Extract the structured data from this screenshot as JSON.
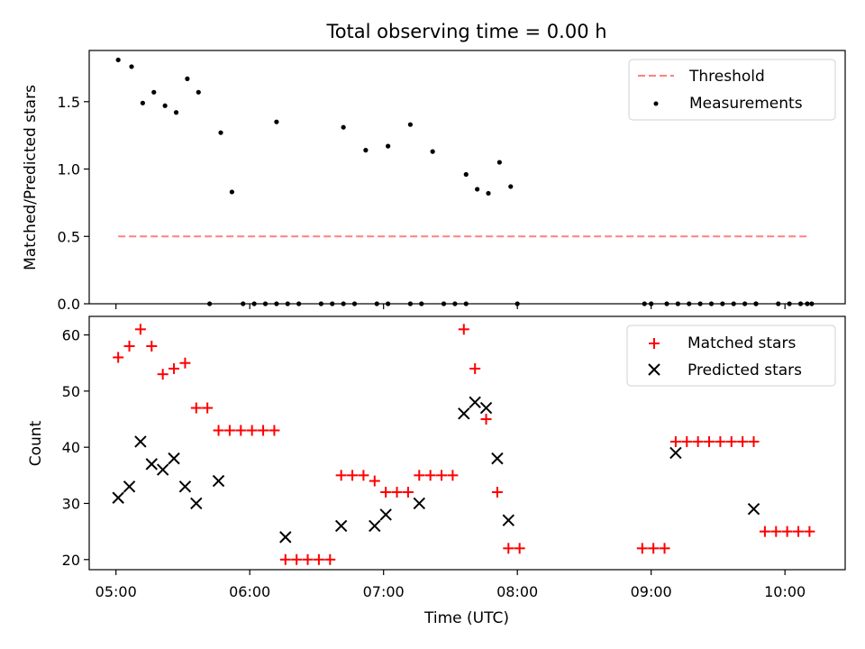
{
  "chart_data": [
    {
      "type": "scatter",
      "title": "Total observing time = 0.00 h",
      "ylabel": "Matched/Predicted stars",
      "xlim": [
        "04:48",
        "10:27"
      ],
      "ylim": [
        0,
        1.88
      ],
      "yticks": [
        0.0,
        0.5,
        1.0,
        1.5
      ],
      "yticklabels": [
        "0.0",
        "0.5",
        "1.0",
        "1.5"
      ],
      "legend_position": "top-right",
      "colors": {
        "threshold": "#ff8080",
        "measurements": "#000000"
      },
      "series": [
        {
          "name": "Threshold",
          "kind": "dashed-line",
          "x": [
            "05:01",
            "10:10"
          ],
          "values": [
            0.5,
            0.5
          ]
        },
        {
          "name": "Measurements",
          "kind": "dots",
          "x": [
            "05:01",
            "05:07",
            "05:12",
            "05:17",
            "05:22",
            "05:27",
            "05:32",
            "05:37",
            "05:47",
            "05:52",
            "06:12",
            "06:42",
            "06:52",
            "07:02",
            "07:12",
            "07:22",
            "07:37",
            "07:42",
            "07:47",
            "07:52",
            "07:57",
            "09:12",
            "09:47",
            "05:42",
            "05:57",
            "06:02",
            "06:07",
            "06:12",
            "06:17",
            "06:22",
            "06:32",
            "06:37",
            "06:42",
            "06:47",
            "06:57",
            "07:02",
            "07:12",
            "07:17",
            "07:27",
            "07:32",
            "07:37",
            "08:00",
            "08:57",
            "09:00",
            "09:07",
            "09:17",
            "09:22",
            "09:27",
            "09:32",
            "09:37",
            "09:42",
            "09:47",
            "09:57",
            "10:02",
            "10:07",
            "10:10",
            "10:12"
          ],
          "values": [
            1.81,
            1.76,
            1.49,
            1.57,
            1.47,
            1.42,
            1.67,
            1.57,
            1.27,
            0.83,
            1.35,
            1.31,
            1.14,
            1.17,
            1.33,
            1.13,
            0.96,
            0.85,
            0.82,
            1.05,
            0.87,
            0.0,
            0.0,
            0,
            0,
            0,
            0,
            0,
            0,
            0,
            0,
            0,
            0,
            0,
            0,
            0,
            0,
            0,
            0,
            0,
            0,
            0,
            0,
            0,
            0,
            0,
            0,
            0,
            0,
            0,
            0,
            0,
            0,
            0,
            0,
            0,
            0
          ]
        }
      ]
    },
    {
      "type": "scatter",
      "xlabel": "Time (UTC)",
      "ylabel": "Count",
      "xlim": [
        "04:48",
        "10:27"
      ],
      "xticks": [
        "05:00",
        "06:00",
        "07:00",
        "08:00",
        "09:00",
        "10:00"
      ],
      "ylim": [
        18.2,
        63.3
      ],
      "yticks": [
        20,
        30,
        40,
        50,
        60
      ],
      "legend_position": "top-right",
      "colors": {
        "matched": "#ff0000",
        "predicted": "#000000"
      },
      "series": [
        {
          "name": "Matched stars",
          "marker": "+",
          "x": [
            "05:01",
            "05:06",
            "05:11",
            "05:16",
            "05:21",
            "05:26",
            "05:31",
            "05:36",
            "05:41",
            "05:46",
            "05:51",
            "05:56",
            "06:01",
            "06:06",
            "06:11",
            "06:16",
            "06:21",
            "06:26",
            "06:31",
            "06:36",
            "06:41",
            "06:46",
            "06:51",
            "06:56",
            "07:01",
            "07:06",
            "07:11",
            "07:16",
            "07:21",
            "07:26",
            "07:31",
            "07:36",
            "07:41",
            "07:46",
            "07:51",
            "07:56",
            "08:01",
            "08:56",
            "09:01",
            "09:06",
            "09:11",
            "09:16",
            "09:21",
            "09:26",
            "09:31",
            "09:36",
            "09:41",
            "09:46",
            "09:51",
            "09:56",
            "10:01",
            "10:06",
            "10:11"
          ],
          "values": [
            56,
            58,
            61,
            58,
            53,
            54,
            55,
            47,
            47,
            43,
            43,
            43,
            43,
            43,
            43,
            20,
            20,
            20,
            20,
            20,
            35,
            35,
            35,
            34,
            32,
            32,
            32,
            35,
            35,
            35,
            35,
            61,
            54,
            45,
            32,
            22,
            22,
            22,
            22,
            22,
            41,
            41,
            41,
            41,
            41,
            41,
            41,
            41,
            25,
            25,
            25,
            25,
            25
          ]
        },
        {
          "name": "Predicted stars",
          "marker": "x",
          "x": [
            "05:01",
            "05:06",
            "05:11",
            "05:16",
            "05:21",
            "05:26",
            "05:31",
            "05:36",
            "05:46",
            "06:16",
            "06:41",
            "06:56",
            "07:01",
            "07:16",
            "07:36",
            "07:41",
            "07:46",
            "07:51",
            "07:56",
            "09:11",
            "09:46"
          ],
          "values": [
            31,
            33,
            41,
            37,
            36,
            38,
            33,
            30,
            34,
            24,
            26,
            26,
            28,
            30,
            46,
            48,
            47,
            38,
            27,
            39,
            29
          ]
        }
      ]
    }
  ]
}
